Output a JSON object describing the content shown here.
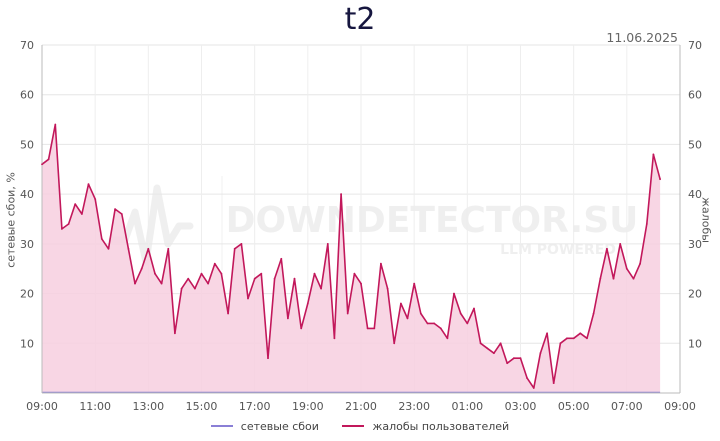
{
  "chart_data": {
    "type": "area",
    "title": "t2",
    "date": "11.06.2025",
    "ylabel_left": "сетевые сбои, %",
    "ylabel_right": "жалобы",
    "ylim": [
      0,
      70
    ],
    "y_ticks": [
      "10",
      "20",
      "30",
      "40",
      "50",
      "60",
      "70"
    ],
    "y_tick_values": [
      10,
      20,
      30,
      40,
      50,
      60,
      70
    ],
    "x_ticks": [
      "09:00",
      "11:00",
      "13:00",
      "15:00",
      "17:00",
      "19:00",
      "21:00",
      "23:00",
      "01:00",
      "03:00",
      "05:00",
      "07:00",
      "09:00"
    ],
    "x_range_minutes": [
      0,
      1440
    ],
    "grid": true,
    "legend_position": "bottom",
    "watermark": "DOWNDETECTOR.SU LLM POWERED",
    "series": [
      {
        "name": "сетевые сбои",
        "color": "#8a7fd6",
        "values": [
          0,
          0
        ]
      },
      {
        "name": "жалобы пользователей",
        "color": "#c2185b",
        "fill": "#f7cfdf",
        "values": [
          46,
          47,
          54,
          33,
          34,
          38,
          36,
          42,
          39,
          31,
          29,
          37,
          36,
          29,
          22,
          25,
          29,
          24,
          22,
          29,
          12,
          21,
          23,
          21,
          24,
          22,
          26,
          24,
          16,
          29,
          30,
          19,
          23,
          24,
          7,
          23,
          27,
          15,
          23,
          13,
          18,
          24,
          21,
          30,
          11,
          40,
          16,
          24,
          22,
          13,
          13,
          26,
          21,
          10,
          18,
          15,
          22,
          16,
          14,
          14,
          13,
          11,
          20,
          16,
          14,
          17,
          10,
          9,
          8,
          10,
          6,
          7,
          7,
          3,
          1,
          8,
          12,
          2,
          10,
          11,
          11,
          12,
          11,
          16,
          23,
          29,
          23,
          30,
          25,
          23,
          26,
          34,
          48,
          43
        ]
      }
    ]
  }
}
